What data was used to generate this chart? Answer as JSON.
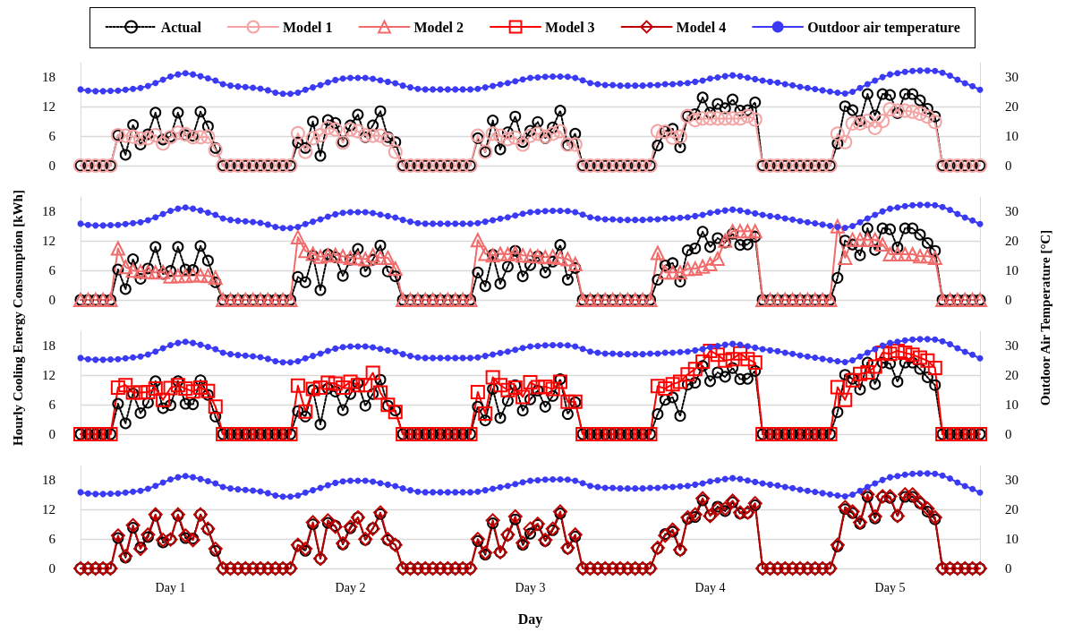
{
  "chart_data": [
    {
      "type": "line",
      "categories": [
        null,
        null,
        null,
        null,
        null,
        null,
        null,
        null,
        null,
        null,
        null,
        null,
        null,
        null,
        null,
        null,
        null,
        null,
        null,
        null,
        null,
        null,
        null,
        null,
        null,
        null,
        null,
        null,
        null,
        null,
        null,
        null,
        null,
        null,
        null,
        null,
        null,
        null,
        null,
        null,
        null,
        null,
        null,
        null,
        null,
        null,
        null,
        null,
        null,
        null,
        null,
        null,
        null,
        null,
        null,
        null,
        null,
        null,
        null,
        null,
        null,
        null,
        null,
        null,
        null,
        null,
        null,
        null,
        null,
        null,
        null,
        null,
        null,
        null,
        null,
        null,
        null,
        null,
        null,
        null,
        null,
        null,
        null,
        null,
        null,
        null,
        null,
        null,
        null,
        null,
        null,
        null,
        null,
        null,
        null,
        null,
        null,
        null,
        null,
        null,
        null,
        null,
        null,
        null,
        null,
        null,
        null,
        null,
        null,
        null,
        null,
        null,
        null,
        null,
        null,
        null,
        null,
        null,
        null,
        null,
        null
      ],
      "ylim": [
        0,
        21
      ],
      "yticks": [
        0,
        6,
        12,
        18
      ],
      "y2lim": [
        0,
        35
      ],
      "y2ticks": [
        0,
        10,
        20,
        30
      ],
      "grid": "y",
      "tick_labels": "y",
      "legend": "top",
      "series": [
        {
          "name": "Actual",
          "color": "#000000",
          "marker": "circle",
          "line_style": "dotted",
          "values": [
            0,
            0,
            0,
            0,
            0,
            6.2,
            2.2,
            8.3,
            4.3,
            6.4,
            10.8,
            5.3,
            5.9,
            10.8,
            6.2,
            6.1,
            11.0,
            8.0,
            3.6,
            0,
            0,
            0,
            0,
            0,
            0,
            0,
            0,
            0,
            0,
            4.7,
            3.6,
            9.0,
            2.0,
            9.3,
            8.7,
            4.9,
            8.2,
            10.4,
            5.8,
            8.2,
            11.1,
            5.8,
            4.8,
            0,
            0,
            0,
            0,
            0,
            0,
            0,
            0,
            0,
            0,
            5.6,
            2.8,
            9.2,
            3.3,
            6.8,
            10.0,
            4.8,
            7.1,
            8.9,
            5.6,
            7.8,
            11.2,
            4.1,
            6.5,
            0,
            0,
            0,
            0,
            0,
            0,
            0,
            0,
            0,
            0,
            4.1,
            7.0,
            7.5,
            3.7,
            10.1,
            10.5,
            13.9,
            10.8,
            12.6,
            11.7,
            13.5,
            11.2,
            11.3,
            12.9,
            0,
            0,
            0,
            0,
            0,
            0,
            0,
            0,
            0,
            0,
            4.5,
            12.1,
            11.3,
            9.1,
            14.6,
            10.2,
            14.6,
            14.4,
            10.7,
            14.6,
            14.6,
            13.3,
            11.6,
            10.0,
            0,
            0,
            0,
            0,
            0,
            0
          ]
        },
        {
          "name": "Model 1",
          "color": "#f4a3a3",
          "marker": "circle",
          "line_style": "solid",
          "values": [
            0,
            0,
            0,
            0,
            0,
            6.2,
            6.1,
            5.9,
            5.5,
            5.6,
            6.2,
            4.5,
            5.8,
            6.7,
            6.4,
            5.8,
            5.8,
            5.9,
            3.2,
            0,
            0,
            0,
            0,
            0,
            0,
            0,
            0,
            0,
            0,
            6.6,
            2.8,
            5.6,
            6.2,
            7.7,
            7.4,
            4.7,
            7.4,
            7.0,
            6.2,
            6.1,
            6.1,
            5.3,
            2.8,
            0,
            0,
            0,
            0,
            0,
            0,
            0,
            0,
            0,
            0,
            6.1,
            2.8,
            6.5,
            6.1,
            5.4,
            5.7,
            4.3,
            6.1,
            6.5,
            5.9,
            6.5,
            7.0,
            4.3,
            4.3,
            0,
            0,
            0,
            0,
            0,
            0,
            0,
            0,
            0,
            0,
            7.0,
            6.9,
            5.7,
            5.9,
            10.1,
            9.3,
            9.6,
            9.6,
            9.6,
            9.6,
            9.6,
            9.6,
            10.1,
            9.4,
            0,
            0,
            0,
            0,
            0,
            0,
            0,
            0,
            0,
            0,
            6.5,
            4.8,
            8.6,
            8.6,
            9.1,
            7.7,
            9.1,
            11.5,
            11.2,
            11.2,
            11.0,
            10.6,
            10.0,
            8.9,
            0,
            0,
            0,
            0,
            0,
            0
          ]
        },
        {
          "name": "Outdoor air temperature",
          "color": "#3a3af5",
          "marker": "circle",
          "line_style": "solid",
          "axis": "y2",
          "values": [
            25.9,
            25.5,
            25.3,
            25.3,
            25.4,
            25.5,
            25.8,
            26.1,
            26.4,
            27.1,
            28.1,
            29.2,
            30.3,
            31.0,
            31.4,
            31.0,
            30.4,
            29.7,
            28.9,
            27.7,
            27.2,
            26.9,
            26.7,
            26.5,
            26.2,
            25.6,
            24.8,
            24.4,
            24.4,
            24.8,
            25.8,
            26.6,
            27.4,
            28.3,
            29.1,
            29.6,
            29.8,
            29.8,
            29.8,
            29.5,
            29.0,
            28.5,
            28.0,
            27.2,
            26.6,
            26.1,
            25.9,
            25.9,
            25.9,
            25.9,
            25.9,
            25.9,
            25.9,
            26.1,
            26.6,
            27.1,
            27.6,
            28.1,
            28.7,
            29.3,
            29.8,
            30.0,
            30.2,
            30.3,
            30.3,
            30.2,
            29.8,
            29.0,
            28.1,
            27.7,
            27.4,
            27.4,
            27.2,
            27.2,
            27.2,
            27.2,
            27.4,
            27.4,
            27.7,
            27.7,
            27.9,
            28.1,
            28.5,
            28.9,
            29.6,
            30.0,
            30.4,
            30.7,
            30.4,
            29.9,
            29.4,
            28.9,
            28.5,
            28.2,
            27.7,
            27.3,
            26.8,
            26.4,
            26.0,
            25.6,
            25.2,
            24.8,
            24.5,
            25.1,
            26.4,
            27.7,
            28.9,
            30.1,
            31.0,
            31.4,
            31.9,
            32.2,
            32.3,
            32.3,
            32.2,
            31.6,
            30.6,
            29.2,
            28.0,
            27.0,
            25.8
          ]
        }
      ]
    },
    {
      "type": "line",
      "categories": [
        null,
        null,
        null,
        null,
        null,
        null,
        null,
        null,
        null,
        null,
        null,
        null,
        null,
        null,
        null,
        null,
        null,
        null,
        null,
        null,
        null,
        null,
        null,
        null,
        null,
        null,
        null,
        null,
        null,
        null,
        null,
        null,
        null,
        null,
        null,
        null,
        null,
        null,
        null,
        null,
        null,
        null,
        null,
        null,
        null,
        null,
        null,
        null,
        null,
        null,
        null,
        null,
        null,
        null,
        null,
        null,
        null,
        null,
        null,
        null,
        null,
        null,
        null,
        null,
        null,
        null,
        null,
        null,
        null,
        null,
        null,
        null,
        null,
        null,
        null,
        null,
        null,
        null,
        null,
        null,
        null,
        null,
        null,
        null,
        null,
        null,
        null,
        null,
        null,
        null,
        null,
        null,
        null,
        null,
        null,
        null,
        null,
        null,
        null,
        null,
        null,
        null,
        null,
        null,
        null,
        null,
        null,
        null,
        null,
        null,
        null,
        null,
        null,
        null,
        null,
        null,
        null,
        null,
        null,
        null,
        null
      ],
      "ylabel": "Hourly Cooling Energy Consumption [kWh]",
      "y2label": "Outdoor Air Temperature [°C]",
      "ylim": [
        0,
        21
      ],
      "yticks": [
        0,
        6,
        12,
        18
      ],
      "y2lim": [
        0,
        35
      ],
      "y2ticks": [
        0,
        10,
        20,
        30
      ],
      "grid": "y",
      "tick_labels": "y",
      "legend": "top",
      "series": [
        {
          "name": "Actual",
          "color": "#000000",
          "marker": "circle",
          "line_style": "dotted",
          "values": [
            0,
            0,
            0,
            0,
            0,
            6.2,
            2.2,
            8.3,
            4.3,
            6.4,
            10.8,
            5.3,
            5.9,
            10.8,
            6.2,
            6.1,
            11.0,
            8.0,
            3.6,
            0,
            0,
            0,
            0,
            0,
            0,
            0,
            0,
            0,
            0,
            4.7,
            3.6,
            9.0,
            2.0,
            9.3,
            8.7,
            4.9,
            8.2,
            10.4,
            5.8,
            8.2,
            11.1,
            5.8,
            4.8,
            0,
            0,
            0,
            0,
            0,
            0,
            0,
            0,
            0,
            0,
            5.6,
            2.8,
            9.2,
            3.3,
            6.8,
            10.0,
            4.8,
            7.1,
            8.9,
            5.6,
            7.8,
            11.2,
            4.1,
            6.5,
            0,
            0,
            0,
            0,
            0,
            0,
            0,
            0,
            0,
            0,
            4.1,
            7.0,
            7.5,
            3.7,
            10.1,
            10.5,
            13.9,
            10.8,
            12.6,
            11.7,
            13.5,
            11.2,
            11.3,
            12.9,
            0,
            0,
            0,
            0,
            0,
            0,
            0,
            0,
            0,
            0,
            4.5,
            12.1,
            11.3,
            9.1,
            14.6,
            10.2,
            14.6,
            14.4,
            10.7,
            14.6,
            14.6,
            13.3,
            11.6,
            10.0,
            0,
            0,
            0,
            0,
            0,
            0
          ]
        },
        {
          "name": "Model 2",
          "color": "#f26b6b",
          "marker": "triangle",
          "line_style": "solid",
          "values": [
            0,
            0,
            0,
            0,
            0,
            10.5,
            6.7,
            6.0,
            5.8,
            5.7,
            5.6,
            5.7,
            4.8,
            4.9,
            4.9,
            5.0,
            5.0,
            4.9,
            4.5,
            0,
            0,
            0,
            0,
            0,
            0,
            0,
            0,
            0,
            0,
            12.8,
            10.0,
            9.4,
            8.8,
            9.1,
            9.2,
            8.9,
            8.6,
            8.5,
            8.3,
            9.1,
            8.6,
            8.6,
            6.4,
            0,
            0,
            0,
            0,
            0,
            0,
            0,
            0,
            0,
            0,
            12.2,
            9.4,
            9.1,
            9.4,
            9.3,
            9.6,
            9.1,
            9.0,
            8.9,
            8.7,
            8.9,
            8.6,
            8.3,
            7.3,
            0,
            0,
            0,
            0,
            0,
            0,
            0,
            0,
            0,
            0,
            9.6,
            5.6,
            5.6,
            5.6,
            6.3,
            6.4,
            6.8,
            7.3,
            8.4,
            12.1,
            14.0,
            14.0,
            14.0,
            14.0,
            0,
            0,
            0,
            0,
            0,
            0,
            0,
            0,
            0,
            0,
            15.0,
            8.6,
            12.3,
            12.3,
            12.3,
            12.3,
            11.3,
            9.3,
            9.3,
            9.3,
            9.3,
            8.9,
            8.9,
            8.6,
            0,
            0,
            0,
            0,
            0,
            0
          ]
        },
        {
          "name": "Outdoor air temperature",
          "color": "#3a3af5",
          "marker": "circle",
          "line_style": "solid",
          "axis": "y2",
          "values": [
            25.9,
            25.5,
            25.3,
            25.3,
            25.4,
            25.5,
            25.8,
            26.1,
            26.4,
            27.1,
            28.1,
            29.2,
            30.3,
            31.0,
            31.4,
            31.0,
            30.4,
            29.7,
            28.9,
            27.7,
            27.2,
            26.9,
            26.7,
            26.5,
            26.2,
            25.6,
            24.8,
            24.4,
            24.4,
            24.8,
            25.8,
            26.6,
            27.4,
            28.3,
            29.1,
            29.6,
            29.8,
            29.8,
            29.8,
            29.5,
            29.0,
            28.5,
            28.0,
            27.2,
            26.6,
            26.1,
            25.9,
            25.9,
            25.9,
            25.9,
            25.9,
            25.9,
            25.9,
            26.1,
            26.6,
            27.1,
            27.6,
            28.1,
            28.7,
            29.3,
            29.8,
            30.0,
            30.2,
            30.3,
            30.3,
            30.2,
            29.8,
            29.0,
            28.1,
            27.7,
            27.4,
            27.4,
            27.2,
            27.2,
            27.2,
            27.2,
            27.4,
            27.4,
            27.7,
            27.7,
            27.9,
            28.1,
            28.5,
            28.9,
            29.6,
            30.0,
            30.4,
            30.7,
            30.4,
            29.9,
            29.4,
            28.9,
            28.5,
            28.2,
            27.7,
            27.3,
            26.8,
            26.4,
            26.0,
            25.6,
            25.2,
            24.8,
            24.5,
            25.1,
            26.4,
            27.7,
            28.9,
            30.1,
            31.0,
            31.4,
            31.9,
            32.2,
            32.3,
            32.3,
            32.2,
            31.6,
            30.6,
            29.2,
            28.0,
            27.0,
            25.8
          ]
        }
      ]
    },
    {
      "type": "line",
      "categories": [
        null,
        null,
        null,
        null,
        null,
        null,
        null,
        null,
        null,
        null,
        null,
        null,
        null,
        null,
        null,
        null,
        null,
        null,
        null,
        null,
        null,
        null,
        null,
        null,
        null,
        null,
        null,
        null,
        null,
        null,
        null,
        null,
        null,
        null,
        null,
        null,
        null,
        null,
        null,
        null,
        null,
        null,
        null,
        null,
        null,
        null,
        null,
        null,
        null,
        null,
        null,
        null,
        null,
        null,
        null,
        null,
        null,
        null,
        null,
        null,
        null,
        null,
        null,
        null,
        null,
        null,
        null,
        null,
        null,
        null,
        null,
        null,
        null,
        null,
        null,
        null,
        null,
        null,
        null,
        null,
        null,
        null,
        null,
        null,
        null,
        null,
        null,
        null,
        null,
        null,
        null,
        null,
        null,
        null,
        null,
        null,
        null,
        null,
        null,
        null,
        null,
        null,
        null,
        null,
        null,
        null,
        null,
        null,
        null,
        null,
        null,
        null,
        null,
        null,
        null,
        null,
        null,
        null,
        null,
        null,
        null
      ],
      "ylim": [
        0,
        21
      ],
      "yticks": [
        0,
        6,
        12,
        18
      ],
      "y2lim": [
        0,
        35
      ],
      "y2ticks": [
        0,
        10,
        20,
        30
      ],
      "grid": "y",
      "tick_labels": "y",
      "legend": "top",
      "series": [
        {
          "name": "Actual",
          "color": "#000000",
          "marker": "circle",
          "line_style": "dotted",
          "values": [
            0,
            0,
            0,
            0,
            0,
            6.2,
            2.2,
            8.3,
            4.3,
            6.4,
            10.8,
            5.3,
            5.9,
            10.8,
            6.2,
            6.1,
            11.0,
            8.0,
            3.6,
            0,
            0,
            0,
            0,
            0,
            0,
            0,
            0,
            0,
            0,
            4.7,
            3.6,
            9.0,
            2.0,
            9.3,
            8.7,
            4.9,
            8.2,
            10.4,
            5.8,
            8.2,
            11.1,
            5.8,
            4.8,
            0,
            0,
            0,
            0,
            0,
            0,
            0,
            0,
            0,
            0,
            5.6,
            2.8,
            9.2,
            3.3,
            6.8,
            10.0,
            4.8,
            7.1,
            8.9,
            5.6,
            7.8,
            11.2,
            4.1,
            6.5,
            0,
            0,
            0,
            0,
            0,
            0,
            0,
            0,
            0,
            0,
            4.1,
            7.0,
            7.5,
            3.7,
            10.1,
            10.5,
            13.9,
            10.8,
            12.6,
            11.7,
            13.5,
            11.2,
            11.3,
            12.9,
            0,
            0,
            0,
            0,
            0,
            0,
            0,
            0,
            0,
            0,
            4.5,
            12.1,
            11.3,
            9.1,
            14.6,
            10.2,
            14.6,
            14.4,
            10.7,
            14.6,
            14.6,
            13.3,
            11.6,
            10.0,
            0,
            0,
            0,
            0,
            0,
            0
          ]
        },
        {
          "name": "Model 3",
          "color": "#ff0000",
          "marker": "square",
          "line_style": "solid",
          "values": [
            0,
            0,
            0,
            0,
            0,
            9.5,
            10.0,
            8.5,
            8.5,
            8.6,
            9.3,
            7.0,
            9.4,
            10.0,
            9.3,
            8.7,
            9.5,
            8.8,
            5.6,
            0,
            0,
            0,
            0,
            0,
            0,
            0,
            0,
            0,
            0,
            9.9,
            4.6,
            9.2,
            9.5,
            10.5,
            10.3,
            9.5,
            10.7,
            10.0,
            10.0,
            12.5,
            8.5,
            6.0,
            4.5,
            0,
            0,
            0,
            0,
            0,
            0,
            0,
            0,
            0,
            0,
            8.6,
            4.2,
            11.6,
            10.0,
            9.0,
            9.5,
            7.6,
            10.6,
            9.6,
            9.7,
            9.2,
            10.7,
            6.6,
            6.6,
            0,
            0,
            0,
            0,
            0,
            0,
            0,
            0,
            0,
            0,
            9.8,
            9.3,
            10.2,
            10.7,
            12.2,
            13.3,
            14.8,
            17.0,
            16.2,
            15.0,
            15.3,
            16.5,
            15.3,
            14.6,
            0,
            0,
            0,
            0,
            0,
            0,
            0,
            0,
            0,
            0,
            9.6,
            7.0,
            11.0,
            12.3,
            12.6,
            13.8,
            16.6,
            16.4,
            17.0,
            16.6,
            16.2,
            15.6,
            15.0,
            13.5,
            0,
            0,
            0,
            0,
            0,
            0
          ]
        },
        {
          "name": "Outdoor air temperature",
          "color": "#3a3af5",
          "marker": "circle",
          "line_style": "solid",
          "axis": "y2",
          "values": [
            25.9,
            25.5,
            25.3,
            25.3,
            25.4,
            25.5,
            25.8,
            26.1,
            26.4,
            27.1,
            28.1,
            29.2,
            30.3,
            31.0,
            31.4,
            31.0,
            30.4,
            29.7,
            28.9,
            27.7,
            27.2,
            26.9,
            26.7,
            26.5,
            26.2,
            25.6,
            24.8,
            24.4,
            24.4,
            24.8,
            25.8,
            26.6,
            27.4,
            28.3,
            29.1,
            29.6,
            29.8,
            29.8,
            29.8,
            29.5,
            29.0,
            28.5,
            28.0,
            27.2,
            26.6,
            26.1,
            25.9,
            25.9,
            25.9,
            25.9,
            25.9,
            25.9,
            25.9,
            26.1,
            26.6,
            27.1,
            27.6,
            28.1,
            28.7,
            29.3,
            29.8,
            30.0,
            30.2,
            30.3,
            30.3,
            30.2,
            29.8,
            29.0,
            28.1,
            27.7,
            27.4,
            27.4,
            27.2,
            27.2,
            27.2,
            27.2,
            27.4,
            27.4,
            27.7,
            27.7,
            27.9,
            28.1,
            28.5,
            28.9,
            29.6,
            30.0,
            30.4,
            30.7,
            30.4,
            29.9,
            29.4,
            28.9,
            28.5,
            28.2,
            27.7,
            27.3,
            26.8,
            26.4,
            26.0,
            25.6,
            25.2,
            24.8,
            24.5,
            25.1,
            26.4,
            27.7,
            28.9,
            30.1,
            31.0,
            31.4,
            31.9,
            32.2,
            32.3,
            32.3,
            32.2,
            31.6,
            30.6,
            29.2,
            28.0,
            27.0,
            25.8
          ]
        }
      ]
    },
    {
      "type": "line",
      "categories": [
        null,
        null,
        null,
        null,
        null,
        null,
        null,
        null,
        null,
        null,
        null,
        null,
        "Day 1",
        null,
        null,
        null,
        null,
        null,
        null,
        null,
        null,
        null,
        null,
        null,
        null,
        null,
        null,
        null,
        null,
        null,
        null,
        null,
        null,
        null,
        null,
        null,
        "Day 2",
        null,
        null,
        null,
        null,
        null,
        null,
        null,
        null,
        null,
        null,
        null,
        null,
        null,
        null,
        null,
        null,
        null,
        null,
        null,
        null,
        null,
        null,
        null,
        "Day 3",
        null,
        null,
        null,
        null,
        null,
        null,
        null,
        null,
        null,
        null,
        null,
        null,
        null,
        null,
        null,
        null,
        null,
        null,
        null,
        null,
        null,
        null,
        null,
        "Day 4",
        null,
        null,
        null,
        null,
        null,
        null,
        null,
        null,
        null,
        null,
        null,
        null,
        null,
        null,
        null,
        null,
        null,
        null,
        null,
        null,
        null,
        null,
        null,
        "Day 5",
        null,
        null,
        null,
        null,
        null,
        null,
        null,
        null,
        null,
        null,
        null,
        null
      ],
      "xlabel": "Day",
      "ylim": [
        0,
        21
      ],
      "yticks": [
        0,
        6,
        12,
        18
      ],
      "y2lim": [
        0,
        35
      ],
      "y2ticks": [
        0,
        10,
        20,
        30
      ],
      "grid": "y",
      "legend": "top",
      "series": [
        {
          "name": "Actual",
          "color": "#000000",
          "marker": "circle",
          "line_style": "dotted",
          "values": [
            0,
            0,
            0,
            0,
            0,
            6.2,
            2.2,
            8.3,
            4.3,
            6.4,
            10.8,
            5.3,
            5.9,
            10.8,
            6.2,
            6.1,
            11.0,
            8.0,
            3.6,
            0,
            0,
            0,
            0,
            0,
            0,
            0,
            0,
            0,
            0,
            4.7,
            3.6,
            9.0,
            2.0,
            9.3,
            8.7,
            4.9,
            8.2,
            10.4,
            5.8,
            8.2,
            11.1,
            5.8,
            4.8,
            0,
            0,
            0,
            0,
            0,
            0,
            0,
            0,
            0,
            0,
            5.6,
            2.8,
            9.2,
            3.3,
            6.8,
            10.0,
            4.8,
            7.1,
            8.9,
            5.6,
            7.8,
            11.2,
            4.1,
            6.5,
            0,
            0,
            0,
            0,
            0,
            0,
            0,
            0,
            0,
            0,
            4.1,
            7.0,
            7.5,
            3.7,
            10.1,
            10.5,
            13.9,
            10.8,
            12.6,
            11.7,
            13.5,
            11.2,
            11.3,
            12.9,
            0,
            0,
            0,
            0,
            0,
            0,
            0,
            0,
            0,
            0,
            4.5,
            12.1,
            11.3,
            9.1,
            14.6,
            10.2,
            14.6,
            14.4,
            10.7,
            14.6,
            14.6,
            13.3,
            11.6,
            10.0,
            0,
            0,
            0,
            0,
            0,
            0
          ]
        },
        {
          "name": "Model 4",
          "color": "#c00000",
          "marker": "diamond",
          "line_style": "solid",
          "values": [
            0,
            0,
            0,
            0,
            0,
            6.7,
            2.5,
            8.8,
            4.0,
            6.9,
            11.0,
            5.8,
            5.9,
            11.0,
            6.7,
            5.8,
            11.0,
            8.1,
            4.0,
            0,
            0,
            0,
            0,
            0,
            0,
            0,
            0,
            0,
            0,
            4.8,
            4.0,
            9.4,
            2.0,
            9.8,
            8.5,
            5.1,
            8.5,
            10.4,
            6.0,
            8.1,
            11.4,
            6.0,
            4.8,
            0,
            0,
            0,
            0,
            0,
            0,
            0,
            0,
            0,
            0,
            6.0,
            3.2,
            9.8,
            3.3,
            6.9,
            10.6,
            5.2,
            8.1,
            9.1,
            5.8,
            8.1,
            11.6,
            4.2,
            6.9,
            0,
            0,
            0,
            0,
            0,
            0,
            0,
            0,
            0,
            0,
            4.2,
            6.7,
            7.9,
            3.8,
            10.4,
            11.0,
            14.3,
            10.7,
            12.2,
            12.2,
            13.8,
            11.4,
            11.4,
            13.3,
            0,
            0,
            0,
            0,
            0,
            0,
            0,
            0,
            0,
            0,
            4.8,
            12.5,
            11.6,
            9.4,
            15.1,
            10.6,
            14.7,
            14.7,
            10.7,
            15.1,
            15.1,
            13.5,
            12.2,
            10.4,
            0,
            0,
            0,
            0,
            0,
            0
          ]
        },
        {
          "name": "Outdoor air temperature",
          "color": "#3a3af5",
          "marker": "circle",
          "line_style": "solid",
          "axis": "y2",
          "values": [
            25.9,
            25.5,
            25.3,
            25.3,
            25.4,
            25.5,
            25.8,
            26.1,
            26.4,
            27.1,
            28.1,
            29.2,
            30.3,
            31.0,
            31.4,
            31.0,
            30.4,
            29.7,
            28.9,
            27.7,
            27.2,
            26.9,
            26.7,
            26.5,
            26.2,
            25.6,
            24.8,
            24.4,
            24.4,
            24.8,
            25.8,
            26.6,
            27.4,
            28.3,
            29.1,
            29.6,
            29.8,
            29.8,
            29.8,
            29.5,
            29.0,
            28.5,
            28.0,
            27.2,
            26.6,
            26.1,
            25.9,
            25.9,
            25.9,
            25.9,
            25.9,
            25.9,
            25.9,
            26.1,
            26.6,
            27.1,
            27.6,
            28.1,
            28.7,
            29.3,
            29.8,
            30.0,
            30.2,
            30.3,
            30.3,
            30.2,
            29.8,
            29.0,
            28.1,
            27.7,
            27.4,
            27.4,
            27.2,
            27.2,
            27.2,
            27.2,
            27.4,
            27.4,
            27.7,
            27.7,
            27.9,
            28.1,
            28.5,
            28.9,
            29.6,
            30.0,
            30.4,
            30.7,
            30.4,
            29.9,
            29.4,
            28.9,
            28.5,
            28.2,
            27.7,
            27.3,
            26.8,
            26.4,
            26.0,
            25.6,
            25.2,
            24.8,
            24.5,
            25.1,
            26.4,
            27.7,
            28.9,
            30.1,
            31.0,
            31.4,
            31.9,
            32.2,
            32.3,
            32.3,
            32.2,
            31.6,
            30.6,
            29.2,
            28.0,
            27.0,
            25.8
          ]
        }
      ]
    }
  ]
}
